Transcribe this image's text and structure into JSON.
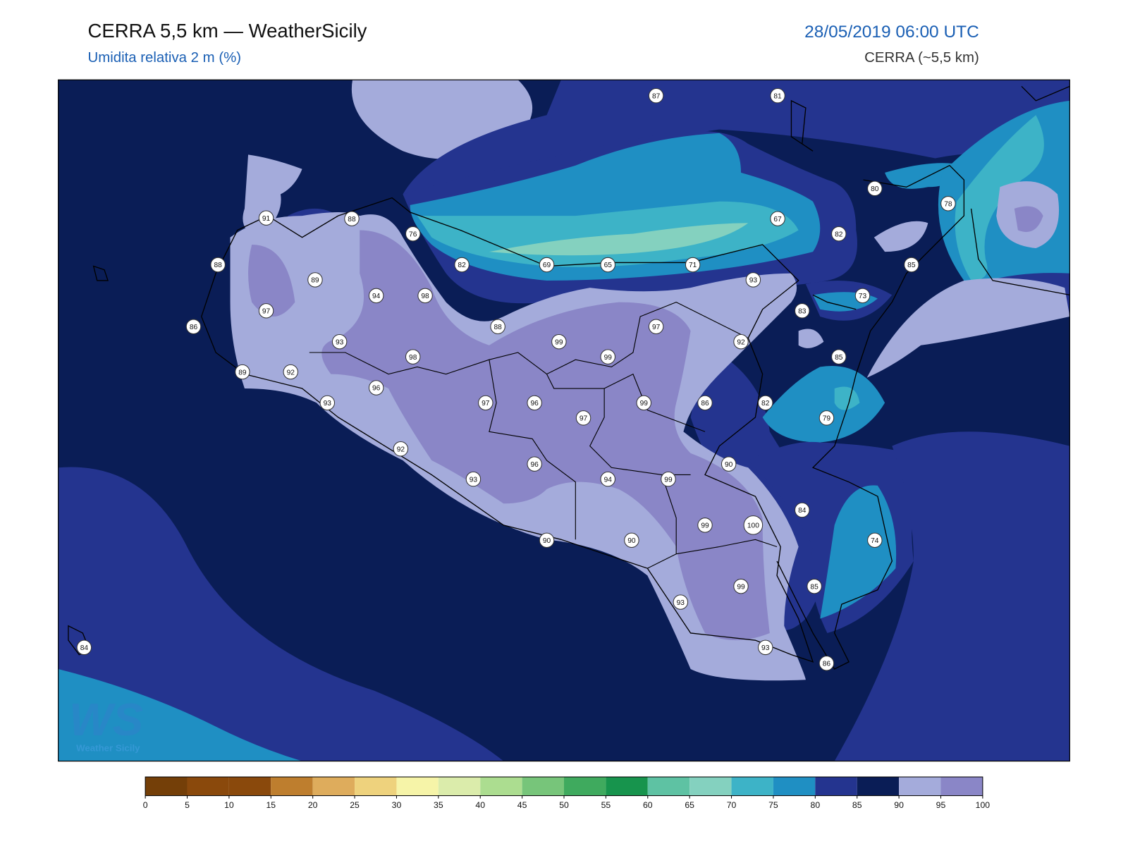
{
  "header": {
    "title": "CERRA 5,5 km — WeatherSicily",
    "subtitle": "Umidita relativa 2 m (%)",
    "datetime": "28/05/2019 06:00 UTC",
    "model": "CERRA (~5,5 km)"
  },
  "logo": {
    "mark": "WS",
    "name": "Weather Sicily"
  },
  "station_values": [
    87,
    81,
    80,
    78,
    91,
    88,
    76,
    67,
    82,
    88,
    82,
    69,
    65,
    71,
    85,
    89,
    94,
    98,
    93,
    73,
    97,
    83,
    86,
    88,
    99,
    97,
    92,
    93,
    98,
    99,
    85,
    89,
    92,
    96,
    93,
    97,
    96,
    97,
    99,
    86,
    82,
    79,
    92,
    90,
    96,
    93,
    94,
    99,
    84,
    99,
    100,
    74,
    90,
    90,
    99,
    85,
    93,
    93,
    86,
    84
  ],
  "colorbar": {
    "ticks": [
      0,
      5,
      10,
      15,
      20,
      25,
      30,
      35,
      40,
      45,
      50,
      55,
      60,
      65,
      70,
      75,
      80,
      85,
      90,
      95,
      100
    ],
    "colors": [
      "#743f08",
      "#8a490c",
      "#8a490c",
      "#be7e2e",
      "#deac5c",
      "#eed27d",
      "#f6f4a8",
      "#dbecab",
      "#acdd90",
      "#77c57a",
      "#3faa5e",
      "#17944d",
      "#5ec2a3",
      "#84d1bf",
      "#3db3c7",
      "#1f8fc3",
      "#24348f",
      "#0a1d56",
      "#a4abdb",
      "#8a86c7"
    ]
  }
}
